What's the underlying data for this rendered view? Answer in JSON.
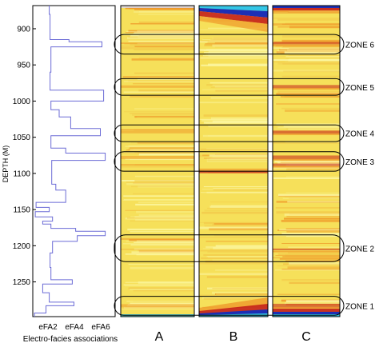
{
  "depth_axis": {
    "label": "DEPTH (M)",
    "ticks": [
      900,
      950,
      1000,
      1050,
      1100,
      1150,
      1200,
      1250
    ],
    "range": [
      868,
      1298
    ]
  },
  "facies_panel": {
    "ticks": [
      "eFA2",
      "eFA4",
      "eFA6"
    ],
    "xlabel": "Electro-facies associations",
    "step_profile": [
      [
        868,
        1
      ],
      [
        880,
        1
      ],
      [
        880,
        1.05
      ],
      [
        915,
        1.05
      ],
      [
        915,
        2.2
      ],
      [
        918,
        2.2
      ],
      [
        918,
        4.2
      ],
      [
        925,
        4.2
      ],
      [
        925,
        1.1
      ],
      [
        960,
        1.1
      ],
      [
        960,
        1.05
      ],
      [
        985,
        1.05
      ],
      [
        985,
        4.3
      ],
      [
        1000,
        4.3
      ],
      [
        1000,
        1.1
      ],
      [
        1012,
        1.1
      ],
      [
        1012,
        1.6
      ],
      [
        1022,
        1.6
      ],
      [
        1022,
        2.3
      ],
      [
        1038,
        2.3
      ],
      [
        1038,
        4.1
      ],
      [
        1048,
        4.1
      ],
      [
        1048,
        1.1
      ],
      [
        1065,
        1.1
      ],
      [
        1065,
        2.0
      ],
      [
        1072,
        2.0
      ],
      [
        1072,
        4.4
      ],
      [
        1082,
        4.4
      ],
      [
        1082,
        1.15
      ],
      [
        1115,
        1.15
      ],
      [
        1115,
        1.4
      ],
      [
        1123,
        1.4
      ],
      [
        1123,
        2.0
      ],
      [
        1140,
        2.0
      ],
      [
        1140,
        0.2
      ],
      [
        1147,
        0.2
      ],
      [
        1147,
        1.0
      ],
      [
        1153,
        1.0
      ],
      [
        1153,
        0.15
      ],
      [
        1160,
        0.15
      ],
      [
        1160,
        1.2
      ],
      [
        1166,
        1.2
      ],
      [
        1166,
        0.6
      ],
      [
        1170,
        0.6
      ],
      [
        1170,
        1.1
      ],
      [
        1176,
        1.1
      ],
      [
        1176,
        2.6
      ],
      [
        1180,
        2.6
      ],
      [
        1180,
        4.4
      ],
      [
        1186,
        4.4
      ],
      [
        1186,
        2.7
      ],
      [
        1194,
        2.7
      ],
      [
        1194,
        1.2
      ],
      [
        1210,
        1.2
      ],
      [
        1210,
        1.05
      ],
      [
        1230,
        1.05
      ],
      [
        1230,
        1.1
      ],
      [
        1247,
        1.1
      ],
      [
        1247,
        2.4
      ],
      [
        1253,
        2.4
      ],
      [
        1253,
        0.6
      ],
      [
        1265,
        0.6
      ],
      [
        1265,
        1.0
      ],
      [
        1278,
        1.0
      ],
      [
        1278,
        2.5
      ],
      [
        1283,
        2.5
      ],
      [
        1283,
        0.8
      ],
      [
        1293,
        0.8
      ],
      [
        1293,
        0.1
      ],
      [
        1298,
        0.1
      ]
    ]
  },
  "panels": [
    {
      "id": "A",
      "label": "A"
    },
    {
      "id": "B",
      "label": "B"
    },
    {
      "id": "C",
      "label": "C"
    }
  ],
  "zones": [
    {
      "label": "ZONE 6",
      "top": 908,
      "bottom": 935
    },
    {
      "label": "ZONE 5",
      "top": 969,
      "bottom": 992
    },
    {
      "label": "ZONE 4",
      "top": 1033,
      "bottom": 1056
    },
    {
      "label": "ZONE 3",
      "top": 1070,
      "bottom": 1097
    },
    {
      "label": "ZONE 2",
      "top": 1185,
      "bottom": 1222
    },
    {
      "label": "ZONE 1",
      "top": 1270,
      "bottom": 1296
    }
  ],
  "colors": {
    "facies_line": "#6b6bd6",
    "heat_base": "#f6e05a",
    "heat_bright": "#fbf6a0",
    "heat_orange": "#ef9a2a",
    "heat_red": "#c4201a",
    "heat_blue": "#1d2fb5",
    "heat_cyan": "#33c6e6"
  }
}
